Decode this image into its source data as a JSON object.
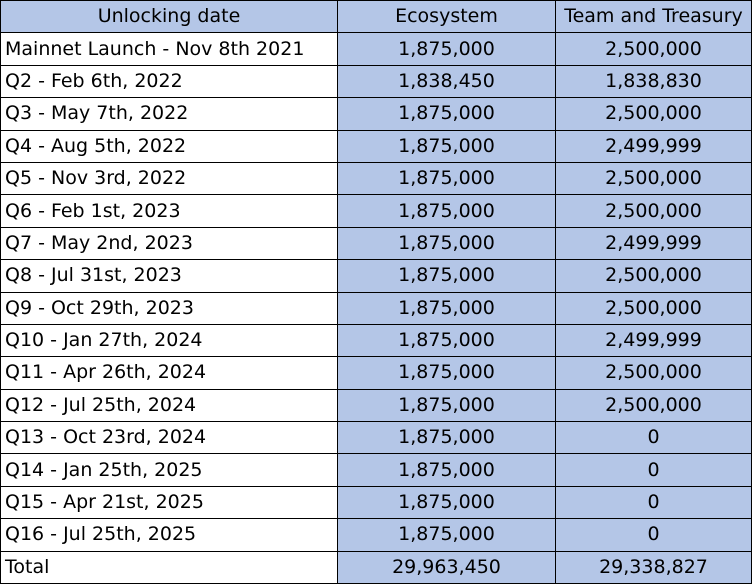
{
  "header": {
    "col1": "Unlocking date",
    "col2": "Ecosystem",
    "col3": "Team and Treasury"
  },
  "rows": [
    {
      "date": "Mainnet Launch - Nov 8th 2021",
      "ecosystem": "1,875,000",
      "team": "2,500,000"
    },
    {
      "date": "Q2 - Feb 6th, 2022",
      "ecosystem": "1,838,450",
      "team": "1,838,830"
    },
    {
      "date": "Q3 - May 7th, 2022",
      "ecosystem": "1,875,000",
      "team": "2,500,000"
    },
    {
      "date": "Q4 - Aug 5th, 2022",
      "ecosystem": "1,875,000",
      "team": "2,499,999"
    },
    {
      "date": "Q5 - Nov 3rd, 2022",
      "ecosystem": "1,875,000",
      "team": "2,500,000"
    },
    {
      "date": "Q6 - Feb 1st, 2023",
      "ecosystem": "1,875,000",
      "team": "2,500,000"
    },
    {
      "date": "Q7 - May 2nd, 2023",
      "ecosystem": "1,875,000",
      "team": "2,499,999"
    },
    {
      "date": "Q8 - Jul 31st, 2023",
      "ecosystem": "1,875,000",
      "team": "2,500,000"
    },
    {
      "date": "Q9 - Oct 29th, 2023",
      "ecosystem": "1,875,000",
      "team": "2,500,000"
    },
    {
      "date": "Q10 - Jan 27th, 2024",
      "ecosystem": "1,875,000",
      "team": "2,499,999"
    },
    {
      "date": "Q11 - Apr 26th, 2024",
      "ecosystem": "1,875,000",
      "team": "2,500,000"
    },
    {
      "date": "Q12 - Jul 25th, 2024",
      "ecosystem": "1,875,000",
      "team": "2,500,000"
    },
    {
      "date": "Q13 - Oct 23rd, 2024",
      "ecosystem": "1,875,000",
      "team": "0"
    },
    {
      "date": "Q14 - Jan 25th, 2025",
      "ecosystem": "1,875,000",
      "team": "0"
    },
    {
      "date": "Q15 - Apr 21st, 2025",
      "ecosystem": "1,875,000",
      "team": "0"
    },
    {
      "date": "Q16 - Jul 25th, 2025",
      "ecosystem": "1,875,000",
      "team": "0"
    }
  ],
  "total": {
    "label": "Total",
    "ecosystem": "29,963,450",
    "team": "29,338,827"
  },
  "colors": {
    "cell_fill": "#b4c6e7",
    "date_fill": "#ffffff",
    "border": "#000000"
  }
}
